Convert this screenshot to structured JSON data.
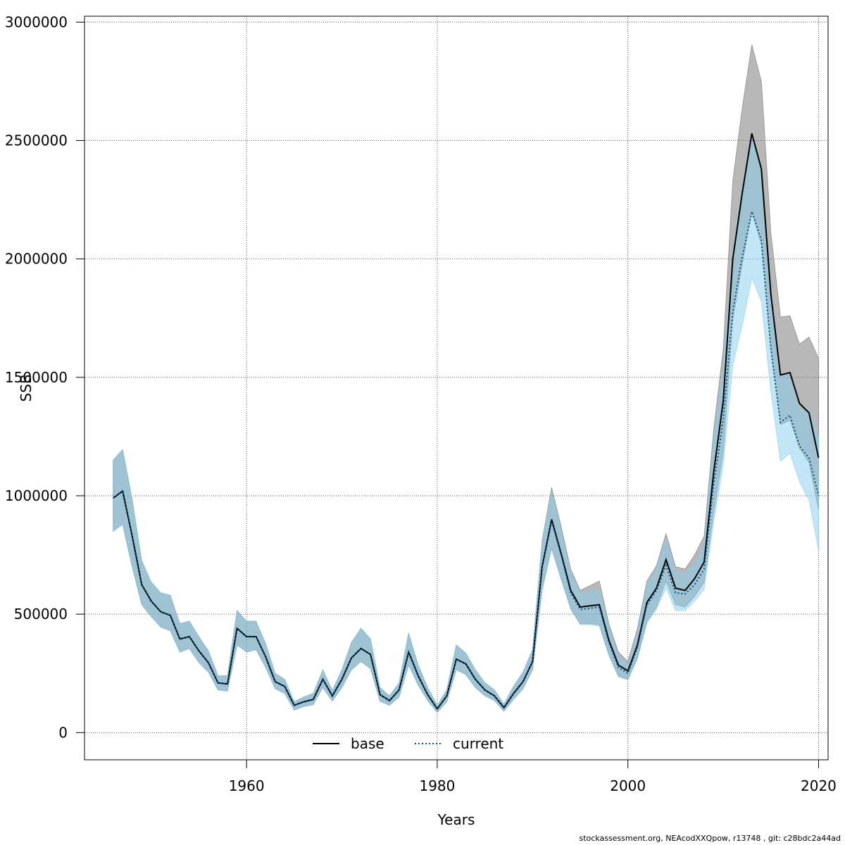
{
  "chart_data": {
    "type": "line",
    "title": "",
    "xlabel": "Years",
    "ylabel": "SSB",
    "xlim": [
      1943,
      2021
    ],
    "ylim": [
      -115000,
      3025000
    ],
    "xticks": [
      1960,
      1980,
      2000,
      2020
    ],
    "yticks": [
      0,
      500000,
      1000000,
      1500000,
      2000000,
      2500000,
      3000000
    ],
    "grid": true,
    "legend_position": "bottom-center",
    "x": [
      1946,
      1947,
      1948,
      1949,
      1950,
      1951,
      1952,
      1953,
      1954,
      1955,
      1956,
      1957,
      1958,
      1959,
      1960,
      1961,
      1962,
      1963,
      1964,
      1965,
      1966,
      1967,
      1968,
      1969,
      1970,
      1971,
      1972,
      1973,
      1974,
      1975,
      1976,
      1977,
      1978,
      1979,
      1980,
      1981,
      1982,
      1983,
      1984,
      1985,
      1986,
      1987,
      1988,
      1989,
      1990,
      1991,
      1992,
      1993,
      1994,
      1995,
      1996,
      1997,
      1998,
      1999,
      2000,
      2001,
      2002,
      2003,
      2004,
      2005,
      2006,
      2007,
      2008,
      2009,
      2010,
      2011,
      2012,
      2013,
      2014,
      2015,
      2016,
      2017,
      2018,
      2019,
      2020
    ],
    "series": [
      {
        "name": "base",
        "color": "#000000",
        "band_color": "#777777",
        "values": [
          990000,
          1020000,
          830000,
          625000,
          555000,
          510000,
          495000,
          395000,
          405000,
          345000,
          295000,
          210000,
          205000,
          440000,
          405000,
          405000,
          320000,
          215000,
          195000,
          115000,
          130000,
          140000,
          225000,
          155000,
          225000,
          315000,
          355000,
          330000,
          160000,
          135000,
          180000,
          340000,
          240000,
          160000,
          100000,
          155000,
          310000,
          290000,
          225000,
          180000,
          155000,
          105000,
          165000,
          215000,
          300000,
          700000,
          900000,
          755000,
          600000,
          530000,
          535000,
          540000,
          390000,
          285000,
          260000,
          370000,
          550000,
          610000,
          730000,
          610000,
          600000,
          650000,
          720000,
          1100000,
          1400000,
          2000000,
          2280000,
          2530000,
          2380000,
          1850000,
          1510000,
          1520000,
          1390000,
          1350000,
          1160000
        ],
        "lower": [
          850000,
          880000,
          700000,
          540000,
          490000,
          445000,
          430000,
          340000,
          355000,
          295000,
          255000,
          180000,
          175000,
          370000,
          340000,
          350000,
          275000,
          185000,
          165000,
          95000,
          110000,
          118000,
          190000,
          133000,
          190000,
          265000,
          300000,
          270000,
          132000,
          115000,
          150000,
          285000,
          200000,
          135000,
          85000,
          130000,
          265000,
          245000,
          190000,
          155000,
          135000,
          90000,
          140000,
          185000,
          265000,
          600000,
          780000,
          650000,
          525000,
          460000,
          460000,
          455000,
          330000,
          240000,
          225000,
          315000,
          470000,
          530000,
          640000,
          540000,
          530000,
          575000,
          635000,
          930000,
          1180000,
          1740000,
          1980000,
          2200000,
          2060000,
          1620000,
          1300000,
          1320000,
          1200000,
          1140000,
          940000
        ],
        "upper": [
          1150000,
          1195000,
          985000,
          725000,
          635000,
          590000,
          580000,
          460000,
          470000,
          405000,
          345000,
          240000,
          240000,
          515000,
          470000,
          470000,
          375000,
          250000,
          225000,
          130000,
          150000,
          165000,
          265000,
          178000,
          265000,
          380000,
          440000,
          395000,
          190000,
          155000,
          210000,
          420000,
          285000,
          190000,
          115000,
          180000,
          370000,
          335000,
          265000,
          210000,
          180000,
          120000,
          195000,
          255000,
          350000,
          810000,
          1035000,
          870000,
          690000,
          600000,
          620000,
          640000,
          460000,
          340000,
          300000,
          440000,
          640000,
          705000,
          840000,
          700000,
          690000,
          750000,
          830000,
          1280000,
          1620000,
          2330000,
          2640000,
          2905000,
          2750000,
          2110000,
          1755000,
          1760000,
          1640000,
          1670000,
          1580000
        ]
      },
      {
        "name": "current",
        "color": "#0a4f7d",
        "band_color": "#87cdee",
        "values": [
          990000,
          1020000,
          830000,
          625000,
          555000,
          510000,
          495000,
          395000,
          405000,
          345000,
          295000,
          210000,
          205000,
          440000,
          405000,
          405000,
          320000,
          215000,
          195000,
          115000,
          130000,
          140000,
          225000,
          155000,
          225000,
          315000,
          355000,
          330000,
          160000,
          135000,
          180000,
          340000,
          240000,
          160000,
          100000,
          155000,
          310000,
          290000,
          225000,
          180000,
          155000,
          105000,
          165000,
          215000,
          300000,
          700000,
          895000,
          750000,
          590000,
          520000,
          525000,
          530000,
          380000,
          275000,
          250000,
          360000,
          540000,
          600000,
          705000,
          590000,
          585000,
          625000,
          690000,
          1050000,
          1320000,
          1780000,
          2010000,
          2200000,
          2080000,
          1620000,
          1310000,
          1340000,
          1210000,
          1160000,
          1000000
        ],
        "lower": [
          850000,
          880000,
          700000,
          540000,
          490000,
          445000,
          430000,
          340000,
          355000,
          295000,
          255000,
          180000,
          175000,
          370000,
          340000,
          350000,
          275000,
          185000,
          165000,
          95000,
          110000,
          118000,
          190000,
          133000,
          190000,
          265000,
          300000,
          270000,
          132000,
          115000,
          150000,
          285000,
          200000,
          135000,
          85000,
          130000,
          265000,
          245000,
          190000,
          155000,
          135000,
          90000,
          140000,
          185000,
          265000,
          600000,
          775000,
          645000,
          520000,
          455000,
          455000,
          450000,
          325000,
          235000,
          222000,
          310000,
          462000,
          520000,
          610000,
          515000,
          515000,
          555000,
          605000,
          890000,
          1130000,
          1550000,
          1720000,
          1920000,
          1820000,
          1440000,
          1145000,
          1180000,
          1060000,
          980000,
          770000
        ],
        "upper": [
          1150000,
          1195000,
          985000,
          725000,
          635000,
          590000,
          580000,
          460000,
          470000,
          405000,
          345000,
          240000,
          240000,
          515000,
          470000,
          470000,
          375000,
          250000,
          225000,
          130000,
          150000,
          165000,
          265000,
          178000,
          265000,
          380000,
          440000,
          395000,
          190000,
          155000,
          210000,
          420000,
          285000,
          190000,
          115000,
          180000,
          370000,
          335000,
          265000,
          210000,
          180000,
          120000,
          195000,
          255000,
          350000,
          800000,
          1020000,
          855000,
          675000,
          590000,
          595000,
          605000,
          440000,
          320000,
          285000,
          420000,
          625000,
          690000,
          820000,
          680000,
          670000,
          715000,
          790000,
          1240000,
          1530000,
          2030000,
          2320000,
          2500000,
          2380000,
          1820000,
          1500000,
          1520000,
          1360000,
          1370000,
          1250000
        ]
      }
    ],
    "footer": "stockassessment.org, NEAcodXXQpow, r13748 , git: c28bdc2a44ad"
  }
}
